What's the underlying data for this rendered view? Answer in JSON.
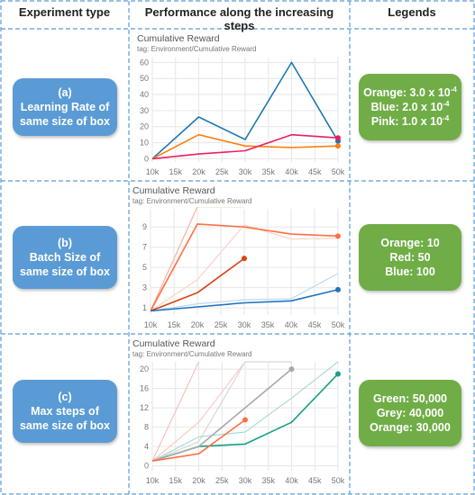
{
  "headers": {
    "col1": "Experiment type",
    "col2": "Performance along the increasing steps",
    "col3": "Legends"
  },
  "rows": [
    {
      "exp": {
        "line1": "(a)",
        "line2": "Learning Rate of",
        "line3": "same size of box"
      },
      "legend": [
        {
          "label": "Orange: 3.0 x 10",
          "exp": "-4"
        },
        {
          "label": "Blue: 2.0 x 10",
          "exp": "-4"
        },
        {
          "label": "Pink: 1.0 x 10",
          "exp": "-4"
        }
      ]
    },
    {
      "exp": {
        "line1": "(b)",
        "line2": "Batch Size of",
        "line3": "same size of box"
      },
      "legend": [
        {
          "label": "Orange: 10",
          "exp": ""
        },
        {
          "label": "Red: 50",
          "exp": ""
        },
        {
          "label": "Blue: 100",
          "exp": ""
        }
      ]
    },
    {
      "exp": {
        "line1": "(c)",
        "line2": "Max steps of",
        "line3": "same size of box"
      },
      "legend": [
        {
          "label": "Green: 50,000",
          "exp": ""
        },
        {
          "label": "Grey: 40,000",
          "exp": ""
        },
        {
          "label": "Orange: 30,000",
          "exp": ""
        }
      ]
    }
  ],
  "colors": {
    "frame_dash": "#5b9bd5",
    "blue_box": "#5b9bd5",
    "green_box": "#70ad47",
    "grid": "#e6e6e6",
    "axis_text": "#777777"
  },
  "chart_data": [
    {
      "type": "line",
      "title": "Cumulative Reward",
      "subtitle": "tag: Environment/Cumulative Reward",
      "x_ticks": [
        "10k",
        "15k",
        "20k",
        "25k",
        "30k",
        "35k",
        "40k",
        "45k",
        "50k"
      ],
      "y_ticks": [
        0,
        10,
        20,
        30,
        40,
        50,
        60
      ],
      "xlim": [
        10,
        50
      ],
      "ylim": [
        -2,
        63
      ],
      "series": [
        {
          "color": "#1f77b4",
          "x": [
            10,
            20,
            30,
            40,
            50
          ],
          "y": [
            0,
            26,
            12,
            60,
            11
          ],
          "end_marker": true
        },
        {
          "color": "#ff7f0e",
          "x": [
            10,
            20,
            30,
            40,
            50
          ],
          "y": [
            0,
            15,
            8,
            7,
            8
          ],
          "end_marker": true
        },
        {
          "color": "#e91e63",
          "x": [
            10,
            20,
            30,
            40,
            50
          ],
          "y": [
            0,
            3,
            5,
            15,
            13
          ],
          "end_marker": true
        }
      ]
    },
    {
      "type": "line",
      "title": "Cumulative Reward",
      "subtitle": "tag: Environment/Cumulative Reward",
      "x_ticks": [
        "10k",
        "15k",
        "20k",
        "25k",
        "30k",
        "35k",
        "40k",
        "45k",
        "50k"
      ],
      "y_ticks": [
        1,
        3,
        5,
        7,
        9
      ],
      "xlim": [
        10,
        50
      ],
      "ylim": [
        0.3,
        10.8
      ],
      "series": [
        {
          "color": "#ff7043",
          "x": [
            10,
            20,
            30,
            40,
            50
          ],
          "y": [
            0.7,
            9.3,
            9.0,
            8.3,
            8.1
          ],
          "end_marker": true
        },
        {
          "color": "#d84315",
          "x": [
            10,
            20,
            30
          ],
          "y": [
            0.7,
            2.5,
            5.9
          ],
          "end_marker": true
        },
        {
          "color": "#1e73be",
          "x": [
            10,
            20,
            30,
            40,
            50
          ],
          "y": [
            0.7,
            1.1,
            1.5,
            1.7,
            2.8
          ],
          "end_marker": true
        },
        {
          "color": "#f7c6b7",
          "x": [
            10,
            20,
            30
          ],
          "y": [
            0.7,
            11,
            11
          ],
          "end_marker": false
        },
        {
          "color": "#f9d3c6",
          "x": [
            10,
            20,
            30,
            40,
            50
          ],
          "y": [
            0.7,
            3.8,
            9.2,
            7.8,
            7.9
          ],
          "end_marker": false
        },
        {
          "color": "#f4b9a6",
          "x": [
            10,
            20
          ],
          "y": [
            0.7,
            11
          ],
          "end_marker": false
        },
        {
          "color": "#bcd8ee",
          "x": [
            10,
            20,
            30,
            40,
            50
          ],
          "y": [
            0.7,
            1.4,
            1.8,
            1.9,
            4.4
          ],
          "end_marker": false
        }
      ]
    },
    {
      "type": "line",
      "title": "Cumulative Reward",
      "subtitle": "tag: Environment/Cumulative Reward",
      "x_ticks": [
        "10k",
        "15k",
        "20k",
        "25k",
        "30k",
        "35k",
        "40k",
        "45k",
        "50k"
      ],
      "y_ticks": [
        0,
        4,
        8,
        12,
        16,
        20
      ],
      "xlim": [
        10,
        50
      ],
      "ylim": [
        -1,
        21.5
      ],
      "series": [
        {
          "color": "#16a085",
          "x": [
            10,
            20,
            30,
            40,
            50
          ],
          "y": [
            1,
            4,
            4.5,
            9,
            19
          ],
          "end_marker": true
        },
        {
          "color": "#a9a9a9",
          "x": [
            10,
            20,
            30,
            40
          ],
          "y": [
            1,
            4,
            12,
            20
          ],
          "end_marker": true
        },
        {
          "color": "#ff7043",
          "x": [
            10,
            20,
            30
          ],
          "y": [
            1,
            2.5,
            9.5
          ],
          "end_marker": true
        },
        {
          "color": "#f8cbbd",
          "x": [
            10,
            20,
            30
          ],
          "y": [
            1,
            9,
            21.5
          ],
          "end_marker": false
        },
        {
          "color": "#f4c4b4",
          "x": [
            10,
            20
          ],
          "y": [
            1,
            21.5
          ],
          "end_marker": false
        },
        {
          "color": "#d8d8d8",
          "x": [
            10,
            20,
            30,
            40
          ],
          "y": [
            1,
            5,
            21.5,
            21.5
          ],
          "end_marker": false
        },
        {
          "color": "#a9dcd1",
          "x": [
            10,
            20,
            30,
            40,
            50
          ],
          "y": [
            1,
            6,
            7,
            14,
            21.5
          ],
          "end_marker": false
        }
      ]
    }
  ]
}
